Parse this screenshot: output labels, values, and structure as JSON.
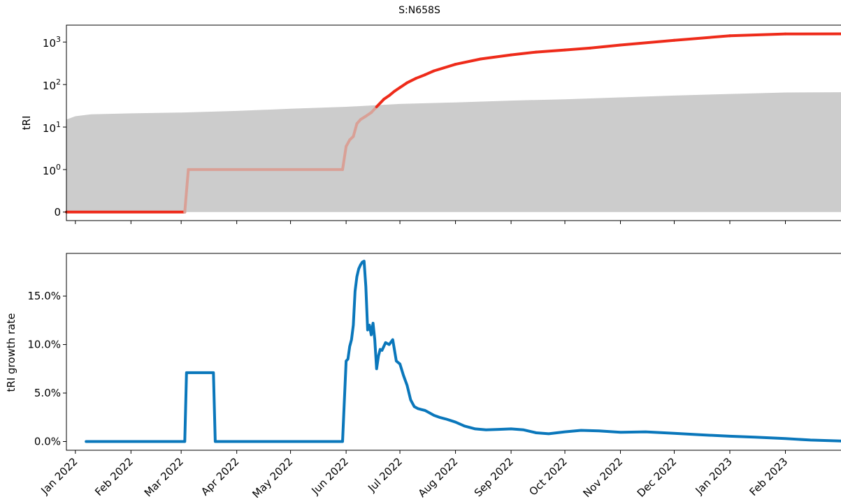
{
  "colors": {
    "threshold_fill": "#cccccc",
    "tri_line_strong": "#ee2b1a",
    "tri_line_faded": "#d9a096",
    "growth_line": "#0a77bb",
    "axis": "#000000"
  },
  "chart_data": {
    "title": "S:N658S",
    "type": "line",
    "x_ticks": [
      {
        "date": "2022-01-01",
        "label": "Jan 2022"
      },
      {
        "date": "2022-02-01",
        "label": "Feb 2022"
      },
      {
        "date": "2022-03-01",
        "label": "Mar 2022"
      },
      {
        "date": "2022-04-01",
        "label": "Apr 2022"
      },
      {
        "date": "2022-05-01",
        "label": "May 2022"
      },
      {
        "date": "2022-06-01",
        "label": "Jun 2022"
      },
      {
        "date": "2022-07-01",
        "label": "Jul 2022"
      },
      {
        "date": "2022-08-01",
        "label": "Aug 2022"
      },
      {
        "date": "2022-09-01",
        "label": "Sep 2022"
      },
      {
        "date": "2022-10-01",
        "label": "Oct 2022"
      },
      {
        "date": "2022-11-01",
        "label": "Nov 2022"
      },
      {
        "date": "2022-12-01",
        "label": "Dec 2022"
      },
      {
        "date": "2023-01-01",
        "label": "Jan 2023"
      },
      {
        "date": "2023-02-01",
        "label": "Feb 2023"
      }
    ],
    "xlim": [
      "2021-12-27",
      "2023-03-04"
    ],
    "panels": [
      {
        "ylabel": "tRI",
        "yscale": "symlog",
        "ylim": [
          -0.2,
          2500
        ],
        "y_ticks": [
          {
            "value": 0,
            "label": "0"
          },
          {
            "value": 1,
            "base": "10",
            "exp": "0"
          },
          {
            "value": 10,
            "base": "10",
            "exp": "1"
          },
          {
            "value": 100,
            "base": "10",
            "exp": "2"
          },
          {
            "value": 1000,
            "base": "10",
            "exp": "3"
          }
        ],
        "threshold": {
          "x": [
            "2021-12-27",
            "2022-01-01",
            "2022-01-10",
            "2022-02-01",
            "2022-03-01",
            "2022-04-01",
            "2022-05-01",
            "2022-06-01",
            "2022-07-01",
            "2022-08-01",
            "2022-09-01",
            "2022-10-01",
            "2022-11-01",
            "2022-12-01",
            "2023-01-01",
            "2023-02-01",
            "2023-03-04"
          ],
          "y": [
            15,
            18,
            20,
            21,
            22,
            24,
            27,
            30,
            35,
            38,
            42,
            45,
            50,
            55,
            60,
            65,
            66
          ]
        },
        "series": [
          {
            "color": "tri_line",
            "x": [
              "2021-12-27",
              "2022-03-03",
              "2022-03-05",
              "2022-05-30",
              "2022-06-01",
              "2022-06-03",
              "2022-06-05",
              "2022-06-07",
              "2022-06-09",
              "2022-06-12",
              "2022-06-15",
              "2022-06-18",
              "2022-06-22",
              "2022-06-25",
              "2022-06-28",
              "2022-07-01",
              "2022-07-05",
              "2022-07-10",
              "2022-07-15",
              "2022-07-20",
              "2022-08-01",
              "2022-08-15",
              "2022-09-01",
              "2022-09-15",
              "2022-10-01",
              "2022-10-15",
              "2022-11-01",
              "2022-12-01",
              "2023-01-01",
              "2023-02-01",
              "2023-03-04"
            ],
            "y": [
              0,
              0,
              1,
              1,
              3.5,
              5,
              6,
              12,
              15,
              18,
              22,
              30,
              45,
              55,
              70,
              85,
              110,
              140,
              170,
              210,
              300,
              400,
              500,
              580,
              650,
              720,
              850,
              1100,
              1400,
              1550,
              1560
            ]
          }
        ]
      },
      {
        "ylabel": "tRI growth rate",
        "yscale": "linear",
        "ylim": [
          -0.9,
          19.4
        ],
        "y_ticks": [
          {
            "value": 0,
            "label": "0.0%"
          },
          {
            "value": 5,
            "label": "5.0%"
          },
          {
            "value": 10,
            "label": "10.0%"
          },
          {
            "value": 15,
            "label": "15.0%"
          }
        ],
        "series": [
          {
            "color": "growth_line",
            "x": [
              "2022-01-07",
              "2022-03-03",
              "2022-03-04",
              "2022-03-19",
              "2022-03-20",
              "2022-05-30",
              "2022-06-01",
              "2022-06-02",
              "2022-06-03",
              "2022-06-04",
              "2022-06-05",
              "2022-06-06",
              "2022-06-07",
              "2022-06-08",
              "2022-06-09",
              "2022-06-10",
              "2022-06-11",
              "2022-06-12",
              "2022-06-13",
              "2022-06-14",
              "2022-06-15",
              "2022-06-16",
              "2022-06-17",
              "2022-06-18",
              "2022-06-19",
              "2022-06-20",
              "2022-06-21",
              "2022-06-22",
              "2022-06-23",
              "2022-06-25",
              "2022-06-27",
              "2022-06-29",
              "2022-07-01",
              "2022-07-03",
              "2022-07-05",
              "2022-07-07",
              "2022-07-09",
              "2022-07-11",
              "2022-07-13",
              "2022-07-15",
              "2022-07-17",
              "2022-07-20",
              "2022-07-23",
              "2022-07-27",
              "2022-08-01",
              "2022-08-06",
              "2022-08-12",
              "2022-08-18",
              "2022-08-25",
              "2022-09-01",
              "2022-09-08",
              "2022-09-15",
              "2022-09-22",
              "2022-10-01",
              "2022-10-10",
              "2022-10-20",
              "2022-11-01",
              "2022-11-15",
              "2022-12-01",
              "2022-12-15",
              "2023-01-01",
              "2023-01-15",
              "2023-02-01",
              "2023-02-15",
              "2023-03-04"
            ],
            "y": [
              0,
              0,
              7.1,
              7.1,
              0,
              0,
              8.3,
              8.5,
              9.8,
              10.5,
              12,
              15.5,
              17,
              17.8,
              18.2,
              18.5,
              18.6,
              16,
              11.5,
              12,
              11,
              12.2,
              10.5,
              7.5,
              8.8,
              9.5,
              9.4,
              9.8,
              10.2,
              10,
              10.5,
              8.3,
              8,
              6.8,
              5.8,
              4.3,
              3.6,
              3.4,
              3.3,
              3.2,
              3,
              2.7,
              2.5,
              2.3,
              2.0,
              1.6,
              1.3,
              1.2,
              1.25,
              1.3,
              1.2,
              0.9,
              0.8,
              1.0,
              1.15,
              1.1,
              0.95,
              1.0,
              0.85,
              0.7,
              0.55,
              0.45,
              0.3,
              0.15,
              0.05
            ]
          }
        ]
      }
    ]
  }
}
